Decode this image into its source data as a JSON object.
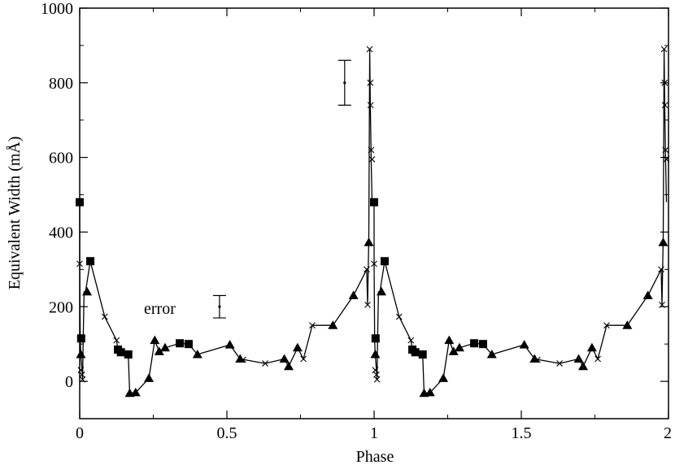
{
  "chart_data": {
    "type": "scatter",
    "xlabel": "Phase",
    "ylabel": "Equivalent Width  (mÅ)",
    "xlim": [
      0,
      2
    ],
    "ylim": [
      -100,
      1000
    ],
    "x_ticks": [
      "0",
      "0.5",
      "1",
      "1.5",
      "2"
    ],
    "y_ticks": [
      "0",
      "200",
      "400",
      "600",
      "800",
      "1000"
    ],
    "grid": false,
    "annotation": {
      "text": "error",
      "x": 0.395,
      "y": 200,
      "err": 30
    },
    "error_bar_example": {
      "x": 0.9,
      "y": 800,
      "err": 60
    },
    "line_series": {
      "name": "",
      "points": [
        [
          0.0,
          480
        ],
        [
          0.0,
          315
        ],
        [
          0.002,
          110
        ],
        [
          0.004,
          72
        ],
        [
          0.008,
          30
        ],
        [
          0.01,
          5
        ],
        [
          0.012,
          115
        ],
        [
          0.015,
          240
        ],
        [
          0.02,
          240
        ],
        [
          0.036,
          322
        ],
        [
          0.085,
          173
        ],
        [
          0.125,
          110
        ],
        [
          0.13,
          85
        ],
        [
          0.14,
          78
        ],
        [
          0.165,
          72
        ],
        [
          0.17,
          -32
        ],
        [
          0.19,
          -30
        ],
        [
          0.235,
          8
        ],
        [
          0.255,
          110
        ],
        [
          0.27,
          80
        ],
        [
          0.29,
          90
        ],
        [
          0.34,
          102
        ],
        [
          0.37,
          100
        ],
        [
          0.4,
          72
        ],
        [
          0.51,
          98
        ],
        [
          0.545,
          60
        ],
        [
          0.63,
          48
        ],
        [
          0.695,
          60
        ],
        [
          0.71,
          40
        ],
        [
          0.74,
          90
        ],
        [
          0.76,
          60
        ],
        [
          0.79,
          150
        ],
        [
          0.86,
          150
        ],
        [
          0.93,
          230
        ],
        [
          0.975,
          300
        ],
        [
          0.978,
          205
        ],
        [
          0.982,
          385
        ],
        [
          0.985,
          890
        ],
        [
          0.987,
          750
        ],
        [
          0.99,
          595
        ],
        [
          0.993,
          480
        ]
      ]
    },
    "series": [
      {
        "name": "",
        "marker": "x",
        "x": [
          0.0,
          0.004,
          0.008,
          0.01,
          0.085,
          0.125,
          0.555,
          0.63,
          0.76,
          0.79,
          0.978,
          0.975,
          0.985,
          0.987,
          0.988,
          0.99,
          0.993
        ],
        "y": [
          315,
          30,
          18,
          5,
          173,
          110,
          58,
          48,
          60,
          150,
          205,
          300,
          890,
          800,
          740,
          620,
          595
        ]
      },
      {
        "name": "",
        "marker": "square",
        "x": [
          0.0,
          0.005,
          0.036,
          0.13,
          0.14,
          0.165,
          0.34,
          0.37
        ],
        "y": [
          480,
          115,
          322,
          85,
          78,
          72,
          102,
          100
        ]
      },
      {
        "name": "",
        "marker": "triangle",
        "x": [
          0.004,
          0.025,
          0.17,
          0.19,
          0.235,
          0.255,
          0.27,
          0.29,
          0.4,
          0.51,
          0.545,
          0.695,
          0.71,
          0.74,
          0.86,
          0.93,
          0.982
        ],
        "y": [
          72,
          240,
          -32,
          -30,
          8,
          110,
          80,
          90,
          72,
          98,
          60,
          60,
          40,
          90,
          150,
          230,
          372
        ]
      }
    ],
    "repeat_offsets": [
      0,
      1
    ]
  }
}
